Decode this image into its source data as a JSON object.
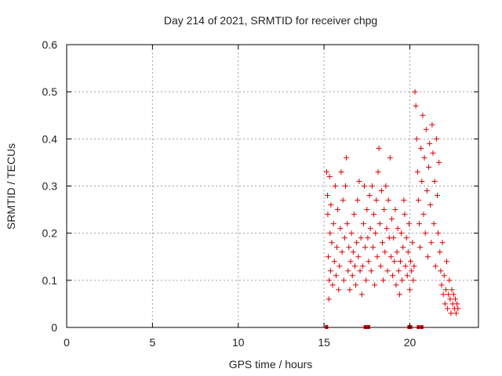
{
  "chart_data": {
    "type": "scatter",
    "title": "Day 214 of 2021, SRMTID for receiver chpg",
    "xlabel": "GPS time / hours",
    "ylabel": "SRMTID / TECUs",
    "xlim": [
      0,
      24
    ],
    "ylim": [
      0,
      0.6
    ],
    "xticks": [
      0,
      5,
      10,
      15,
      20
    ],
    "yticks": [
      0,
      0.1,
      0.2,
      0.3,
      0.4,
      0.5,
      0.6
    ],
    "xtick_labels": [
      "0",
      "5",
      "10",
      "15",
      "20"
    ],
    "ytick_labels": [
      "0",
      "0.1",
      "0.2",
      "0.3",
      "0.4",
      "0.5",
      "0.6"
    ],
    "grid": true,
    "legend": false,
    "marker": "+",
    "color": "#dd0000",
    "series": [
      {
        "points": [
          [
            15.15,
            0.33
          ],
          [
            15.2,
            0.28
          ],
          [
            15.22,
            0.24
          ],
          [
            15.25,
            0.15
          ],
          [
            15.28,
            0.06
          ],
          [
            15.3,
            0.1
          ],
          [
            15.32,
            0.32
          ],
          [
            15.35,
            0.2
          ],
          [
            15.38,
            0.12
          ],
          [
            15.4,
            0.26
          ],
          [
            15.45,
            0.18
          ],
          [
            15.5,
            0.09
          ],
          [
            15.55,
            0.22
          ],
          [
            15.6,
            0.14
          ],
          [
            15.65,
            0.3
          ],
          [
            15.7,
            0.11
          ],
          [
            15.75,
            0.17
          ],
          [
            15.8,
            0.25
          ],
          [
            15.85,
            0.08
          ],
          [
            15.9,
            0.13
          ],
          [
            15.95,
            0.21
          ],
          [
            16.0,
            0.33
          ],
          [
            16.05,
            0.16
          ],
          [
            16.1,
            0.27
          ],
          [
            16.15,
            0.1
          ],
          [
            16.2,
            0.19
          ],
          [
            16.25,
            0.3
          ],
          [
            16.3,
            0.36
          ],
          [
            16.35,
            0.22
          ],
          [
            16.4,
            0.12
          ],
          [
            16.45,
            0.17
          ],
          [
            16.5,
            0.08
          ],
          [
            16.55,
            0.14
          ],
          [
            16.6,
            0.2
          ],
          [
            16.65,
            0.11
          ],
          [
            16.7,
            0.16
          ],
          [
            16.75,
            0.24
          ],
          [
            16.8,
            0.13
          ],
          [
            16.85,
            0.09
          ],
          [
            16.9,
            0.18
          ],
          [
            16.95,
            0.27
          ],
          [
            17.0,
            0.15
          ],
          [
            17.05,
            0.31
          ],
          [
            17.1,
            0.12
          ],
          [
            17.15,
            0.19
          ],
          [
            17.2,
            0.07
          ],
          [
            17.25,
            0.13
          ],
          [
            17.3,
            0.22
          ],
          [
            17.35,
            0.3
          ],
          [
            17.4,
            0.17
          ],
          [
            17.45,
            0.1
          ],
          [
            17.5,
            0.25
          ],
          [
            17.55,
            0.19
          ],
          [
            17.6,
            0.14
          ],
          [
            17.65,
            0.28
          ],
          [
            17.7,
            0.21
          ],
          [
            17.75,
            0.12
          ],
          [
            17.8,
            0.3
          ],
          [
            17.85,
            0.17
          ],
          [
            17.9,
            0.24
          ],
          [
            17.95,
            0.09
          ],
          [
            18.0,
            0.2
          ],
          [
            18.05,
            0.27
          ],
          [
            18.1,
            0.15
          ],
          [
            18.15,
            0.33
          ],
          [
            18.2,
            0.38
          ],
          [
            18.25,
            0.22
          ],
          [
            18.3,
            0.13
          ],
          [
            18.35,
            0.29
          ],
          [
            18.4,
            0.18
          ],
          [
            18.45,
            0.1
          ],
          [
            18.5,
            0.25
          ],
          [
            18.55,
            0.16
          ],
          [
            18.6,
            0.3
          ],
          [
            18.65,
            0.21
          ],
          [
            18.7,
            0.12
          ],
          [
            18.75,
            0.27
          ],
          [
            18.8,
            0.19
          ],
          [
            18.85,
            0.36
          ],
          [
            18.9,
            0.15
          ],
          [
            18.95,
            0.23
          ],
          [
            19.0,
            0.11
          ],
          [
            19.05,
            0.19
          ],
          [
            19.1,
            0.14
          ],
          [
            19.15,
            0.25
          ],
          [
            19.2,
            0.09
          ],
          [
            19.25,
            0.16
          ],
          [
            19.3,
            0.21
          ],
          [
            19.35,
            0.12
          ],
          [
            19.4,
            0.07
          ],
          [
            19.45,
            0.14
          ],
          [
            19.5,
            0.2
          ],
          [
            19.55,
            0.1
          ],
          [
            19.6,
            0.17
          ],
          [
            19.65,
            0.27
          ],
          [
            19.7,
            0.24
          ],
          [
            19.75,
            0.13
          ],
          [
            19.8,
            0.19
          ],
          [
            19.85,
            0.11
          ],
          [
            19.9,
            0.16
          ],
          [
            19.95,
            0.22
          ],
          [
            20.0,
            0.08
          ],
          [
            20.05,
            0.14
          ],
          [
            20.1,
            0.12
          ],
          [
            20.15,
            0.18
          ],
          [
            20.2,
            0.1
          ],
          [
            20.25,
            0.13
          ],
          [
            20.3,
            0.5
          ],
          [
            20.35,
            0.47
          ],
          [
            20.4,
            0.4
          ],
          [
            20.45,
            0.33
          ],
          [
            20.5,
            0.27
          ],
          [
            20.55,
            0.22
          ],
          [
            20.6,
            0.17
          ],
          [
            20.65,
            0.38
          ],
          [
            20.7,
            0.31
          ],
          [
            20.75,
            0.45
          ],
          [
            20.8,
            0.24
          ],
          [
            20.85,
            0.36
          ],
          [
            20.9,
            0.2
          ],
          [
            20.95,
            0.42
          ],
          [
            21.0,
            0.29
          ],
          [
            21.05,
            0.15
          ],
          [
            21.1,
            0.34
          ],
          [
            21.15,
            0.39
          ],
          [
            21.2,
            0.26
          ],
          [
            21.25,
            0.18
          ],
          [
            21.3,
            0.43
          ],
          [
            21.35,
            0.37
          ],
          [
            21.4,
            0.22
          ],
          [
            21.45,
            0.31
          ],
          [
            21.5,
            0.13
          ],
          [
            21.55,
            0.4
          ],
          [
            21.6,
            0.28
          ],
          [
            21.65,
            0.2
          ],
          [
            21.7,
            0.35
          ],
          [
            21.75,
            0.16
          ],
          [
            21.8,
            0.12
          ],
          [
            21.85,
            0.09
          ],
          [
            21.9,
            0.18
          ],
          [
            21.95,
            0.07
          ],
          [
            22.0,
            0.11
          ],
          [
            22.05,
            0.05
          ],
          [
            22.1,
            0.08
          ],
          [
            22.15,
            0.14
          ],
          [
            22.2,
            0.04
          ],
          [
            22.25,
            0.07
          ],
          [
            22.3,
            0.1
          ],
          [
            22.35,
            0.06
          ],
          [
            22.4,
            0.03
          ],
          [
            22.45,
            0.08
          ],
          [
            22.5,
            0.05
          ],
          [
            22.55,
            0.07
          ],
          [
            22.6,
            0.04
          ],
          [
            22.65,
            0.06
          ],
          [
            22.7,
            0.03
          ],
          [
            22.75,
            0.05
          ],
          [
            22.8,
            0.04
          ]
        ]
      }
    ],
    "baseline_marks_x": [
      15.15,
      17.4,
      17.5,
      17.6,
      19.95,
      20.05,
      20.5,
      20.7
    ]
  }
}
